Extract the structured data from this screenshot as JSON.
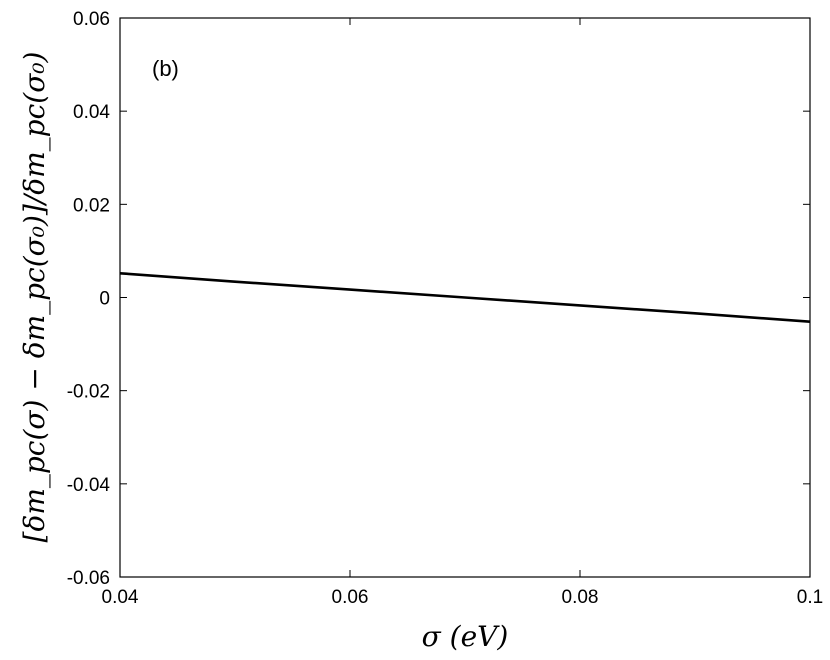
{
  "chart_data": {
    "type": "line",
    "panel_label": "(b)",
    "xlabel": "σ (eV)",
    "ylabel": "[δm_pc(σ) − δm_pc(σ₀)]/δm_pc(σ₀)",
    "xlim": [
      0.04,
      0.1
    ],
    "ylim": [
      -0.06,
      0.06
    ],
    "x_ticks": [
      0.04,
      0.06,
      0.08,
      0.1
    ],
    "x_tick_labels": [
      "0.04",
      "0.06",
      "0.08",
      "0.1"
    ],
    "y_ticks": [
      -0.06,
      -0.04,
      -0.02,
      0,
      0.02,
      0.04,
      0.06
    ],
    "y_tick_labels": [
      "-0.06",
      "-0.04",
      "-0.02",
      "0",
      "0.02",
      "0.04",
      "0.06"
    ],
    "grid": false,
    "series": [
      {
        "color": "#000000",
        "x": [
          0.04,
          0.05,
          0.06,
          0.07,
          0.08,
          0.09,
          0.1
        ],
        "y": [
          0.0052,
          0.0034,
          0.0017,
          0.0,
          -0.0017,
          -0.0034,
          -0.0052
        ]
      }
    ]
  }
}
